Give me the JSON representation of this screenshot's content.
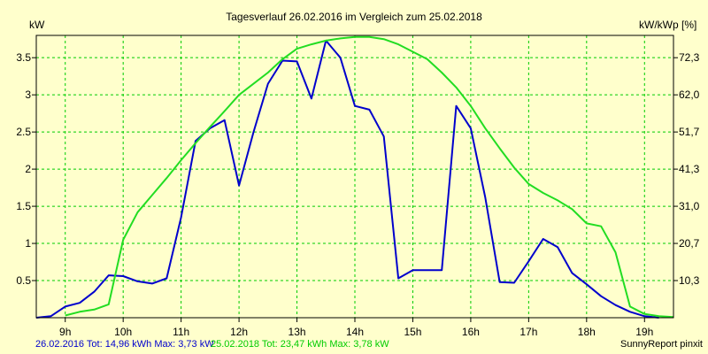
{
  "colors": {
    "background": "#FFFFCC",
    "grid": "#00CC00",
    "series_2016": "#0000CC",
    "series_2018": "#22DD22"
  },
  "footer": {
    "series1": "26.02.2016 Tot: 14,96 kWh Max: 3,73 kW",
    "series2": "25.02.2018 Tot: 23,47 kWh Max: 3,78 kW",
    "credit": "SunnyReport pinxit"
  },
  "chart_data": {
    "type": "line",
    "title": "Tagesverlauf 26.02.2016 im Vergleich zum 25.02.2018",
    "ylabel_left": "kW",
    "ylabel_right": "kW/kWp [%]",
    "xlim": [
      8.5,
      19.5
    ],
    "ylim": [
      0,
      3.8
    ],
    "grid": true,
    "x_ticks": [
      9,
      10,
      11,
      12,
      13,
      14,
      15,
      16,
      17,
      18,
      19
    ],
    "x_tick_labels": [
      "9h",
      "10h",
      "11h",
      "12h",
      "13h",
      "14h",
      "15h",
      "16h",
      "17h",
      "18h",
      "19h"
    ],
    "y_ticks_left": [
      0.5,
      1,
      1.5,
      2,
      2.5,
      3,
      3.5
    ],
    "y_tick_labels_left": [
      "0.5",
      "1",
      "1.5",
      "2",
      "2.5",
      "3",
      "3.5"
    ],
    "y_ticks_right": [
      0.5,
      1,
      1.5,
      2,
      2.5,
      3,
      3.5
    ],
    "y_tick_labels_right": [
      "10,3",
      "20,7",
      "31,0",
      "41,3",
      "51,7",
      "62,0",
      "72,3"
    ],
    "series": [
      {
        "name": "26.02.2016",
        "x": [
          8.5,
          8.75,
          9.0,
          9.25,
          9.5,
          9.75,
          10.0,
          10.25,
          10.5,
          10.75,
          11.0,
          11.25,
          11.5,
          11.75,
          12.0,
          12.25,
          12.5,
          12.75,
          13.0,
          13.25,
          13.5,
          13.75,
          14.0,
          14.25,
          14.5,
          14.75,
          15.0,
          15.25,
          15.5,
          15.75,
          16.0,
          16.25,
          16.5,
          16.75,
          17.0,
          17.25,
          17.5,
          17.75,
          18.0,
          18.25,
          18.5,
          18.75,
          19.0,
          19.25
        ],
        "values": [
          0.0,
          0.02,
          0.15,
          0.2,
          0.35,
          0.57,
          0.56,
          0.49,
          0.46,
          0.53,
          1.35,
          2.38,
          2.55,
          2.66,
          1.78,
          2.5,
          3.15,
          3.46,
          3.45,
          2.95,
          3.73,
          3.5,
          2.85,
          2.8,
          2.44,
          0.53,
          0.64,
          0.64,
          0.64,
          2.85,
          2.55,
          1.62,
          0.48,
          0.47,
          0.76,
          1.06,
          0.95,
          0.6,
          0.45,
          0.29,
          0.17,
          0.08,
          0.02,
          0.0
        ]
      },
      {
        "name": "25.02.2018",
        "x": [
          9.0,
          9.25,
          9.5,
          9.75,
          10.0,
          10.25,
          10.5,
          10.75,
          11.0,
          11.25,
          11.5,
          11.75,
          12.0,
          12.25,
          12.5,
          12.75,
          13.0,
          13.25,
          13.5,
          13.75,
          14.0,
          14.25,
          14.5,
          14.75,
          15.0,
          15.25,
          15.5,
          15.75,
          16.0,
          16.25,
          16.5,
          16.75,
          17.0,
          17.25,
          17.5,
          17.75,
          18.0,
          18.25,
          18.5,
          18.75,
          19.0,
          19.25,
          19.5
        ],
        "values": [
          0.03,
          0.08,
          0.11,
          0.18,
          1.05,
          1.42,
          1.65,
          1.88,
          2.12,
          2.35,
          2.57,
          2.78,
          3.0,
          3.15,
          3.3,
          3.48,
          3.62,
          3.68,
          3.73,
          3.76,
          3.78,
          3.78,
          3.75,
          3.68,
          3.58,
          3.48,
          3.3,
          3.1,
          2.85,
          2.55,
          2.28,
          2.02,
          1.8,
          1.68,
          1.58,
          1.46,
          1.27,
          1.23,
          0.88,
          0.15,
          0.05,
          0.02,
          0.01
        ]
      }
    ]
  }
}
